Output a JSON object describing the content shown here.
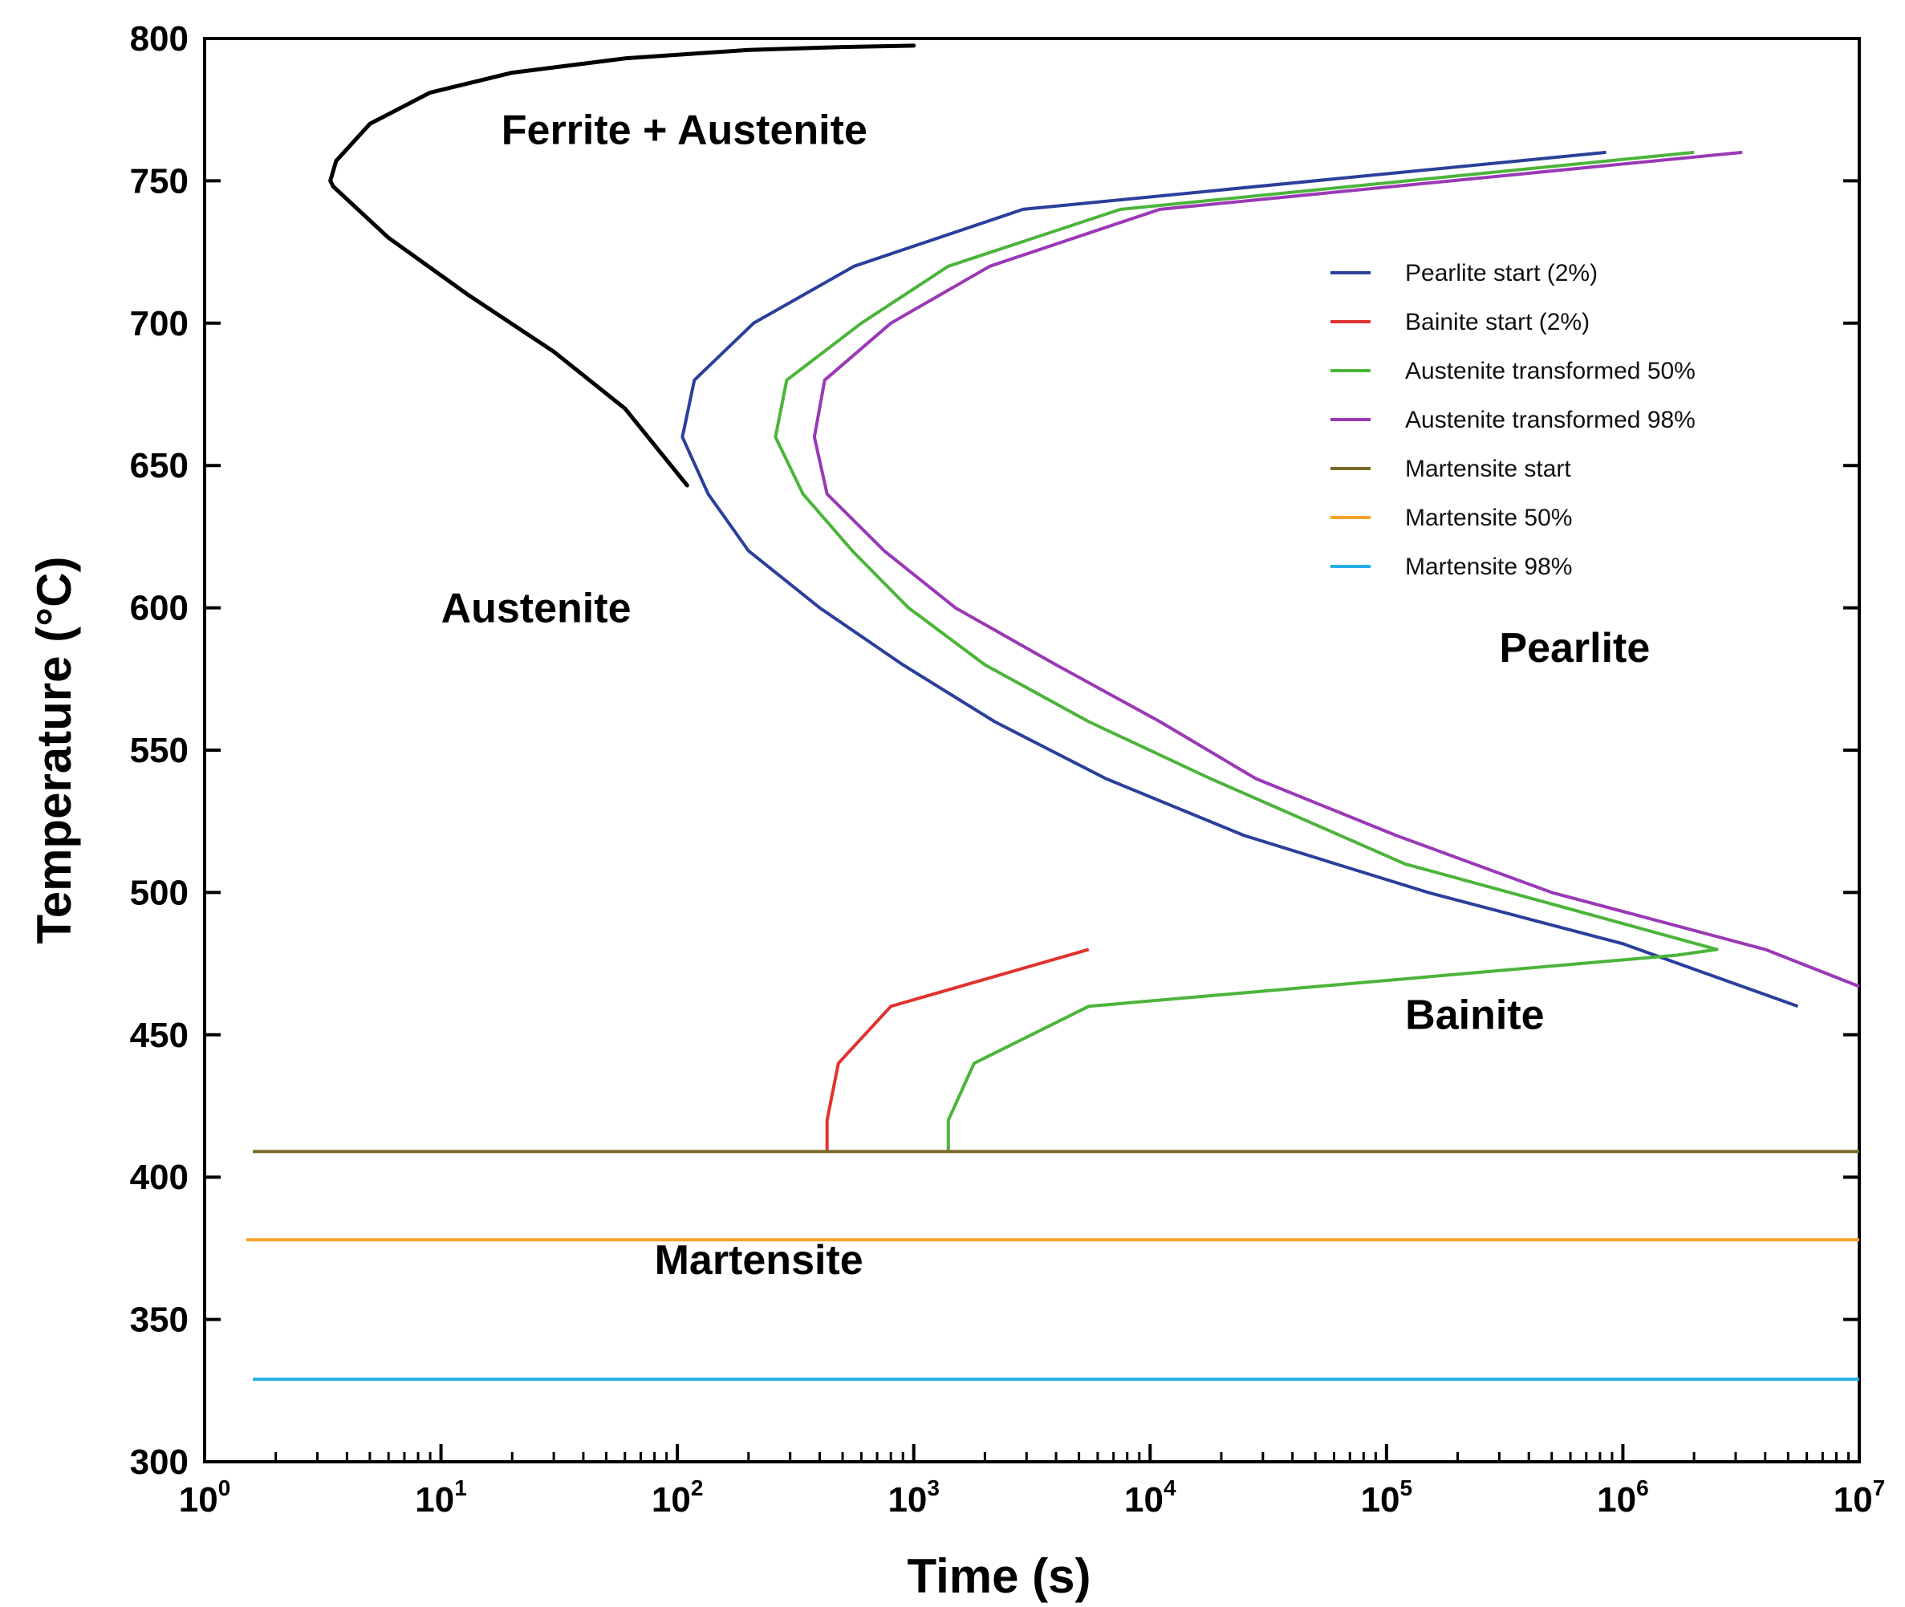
{
  "chart_data": {
    "type": "line",
    "title": "",
    "xlabel": "Time (s)",
    "ylabel": "Temperature (°C)",
    "xscale": "log",
    "xlim_exp": [
      0,
      7
    ],
    "ylim": [
      300,
      800
    ],
    "x_ticks": [
      {
        "base": "10",
        "exp": "0",
        "value": 1
      },
      {
        "base": "10",
        "exp": "1",
        "value": 10
      },
      {
        "base": "10",
        "exp": "2",
        "value": 100
      },
      {
        "base": "10",
        "exp": "3",
        "value": 1000
      },
      {
        "base": "10",
        "exp": "4",
        "value": 10000
      },
      {
        "base": "10",
        "exp": "5",
        "value": 100000
      },
      {
        "base": "10",
        "exp": "6",
        "value": 1000000
      },
      {
        "base": "10",
        "exp": "7",
        "value": 10000000
      }
    ],
    "y_ticks": [
      "300",
      "350",
      "400",
      "450",
      "500",
      "550",
      "600",
      "650",
      "700",
      "750",
      "800"
    ],
    "legend_position": "upper-right",
    "ferrite_curve": {
      "name": "Ferrite + Austenite boundary",
      "color": "#000000",
      "points": [
        [
          110,
          643
        ],
        [
          60,
          670
        ],
        [
          30,
          690
        ],
        [
          13,
          710
        ],
        [
          6,
          730
        ],
        [
          3.5,
          748
        ],
        [
          3.4,
          750
        ],
        [
          3.6,
          757
        ],
        [
          5,
          770
        ],
        [
          9,
          781
        ],
        [
          20,
          788
        ],
        [
          60,
          793
        ],
        [
          200,
          796
        ],
        [
          500,
          797
        ],
        [
          1000,
          797.5
        ]
      ]
    },
    "series": [
      {
        "name": "Pearlite start (2%)",
        "color": "#2b3f9b",
        "points": [
          [
            5500000,
            460
          ],
          [
            1000000,
            482
          ],
          [
            150000,
            500
          ],
          [
            25000,
            520
          ],
          [
            6500,
            540
          ],
          [
            2200,
            560
          ],
          [
            900,
            580
          ],
          [
            400,
            600
          ],
          [
            200,
            620
          ],
          [
            135,
            640
          ],
          [
            105,
            660
          ],
          [
            118,
            680
          ],
          [
            210,
            700
          ],
          [
            560,
            720
          ],
          [
            2900,
            740
          ],
          [
            850000,
            760
          ]
        ]
      },
      {
        "name": "Bainite start (2%)",
        "color": "#e0332f",
        "points": [
          [
            430,
            409
          ],
          [
            430,
            420
          ],
          [
            480,
            440
          ],
          [
            800,
            460
          ],
          [
            5500,
            480
          ]
        ]
      },
      {
        "name": "Austenite transformed 50%",
        "color": "#4cb43b",
        "points": [
          [
            1400,
            409
          ],
          [
            1400,
            420
          ],
          [
            1800,
            440
          ],
          [
            5500,
            460
          ],
          [
            1700000,
            478
          ],
          [
            2500000,
            480
          ],
          [
            550000,
            495
          ],
          [
            120000,
            510
          ],
          [
            18000,
            540
          ],
          [
            5500,
            560
          ],
          [
            2000,
            580
          ],
          [
            950,
            600
          ],
          [
            550,
            620
          ],
          [
            340,
            640
          ],
          [
            260,
            660
          ],
          [
            290,
            680
          ],
          [
            600,
            700
          ],
          [
            1400,
            720
          ],
          [
            7500,
            740
          ],
          [
            2000000,
            760
          ]
        ]
      },
      {
        "name": "Austenite transformed 98%",
        "color": "#9a39b6",
        "points": [
          [
            10000000,
            467
          ],
          [
            4000000,
            480
          ],
          [
            500000,
            500
          ],
          [
            110000,
            520
          ],
          [
            28000,
            540
          ],
          [
            11000,
            560
          ],
          [
            4000,
            580
          ],
          [
            1500,
            600
          ],
          [
            750,
            620
          ],
          [
            430,
            640
          ],
          [
            380,
            660
          ],
          [
            420,
            680
          ],
          [
            800,
            700
          ],
          [
            2100,
            720
          ],
          [
            11000,
            740
          ],
          [
            3200000,
            760
          ]
        ]
      },
      {
        "name": "Martensite start",
        "color": "#7a6a2a",
        "points": [
          [
            1.6,
            409
          ],
          [
            10000000,
            409
          ]
        ]
      },
      {
        "name": "Martensite 50%",
        "color": "#f7a32a",
        "points": [
          [
            1.5,
            378
          ],
          [
            10000000,
            378
          ]
        ]
      },
      {
        "name": "Martensite 98%",
        "color": "#25aee8",
        "points": [
          [
            1.6,
            329
          ],
          [
            10000000,
            329
          ]
        ]
      }
    ],
    "annotations": [
      {
        "text": "Ferrite + Austenite",
        "x": 18,
        "y": 763
      },
      {
        "text": "Austenite",
        "x": 10,
        "y": 595
      },
      {
        "text": "Pearlite",
        "x": 300000,
        "y": 581
      },
      {
        "text": "Bainite",
        "x": 120000,
        "y": 452
      },
      {
        "text": "Martensite",
        "x": 80,
        "y": 366
      }
    ]
  }
}
